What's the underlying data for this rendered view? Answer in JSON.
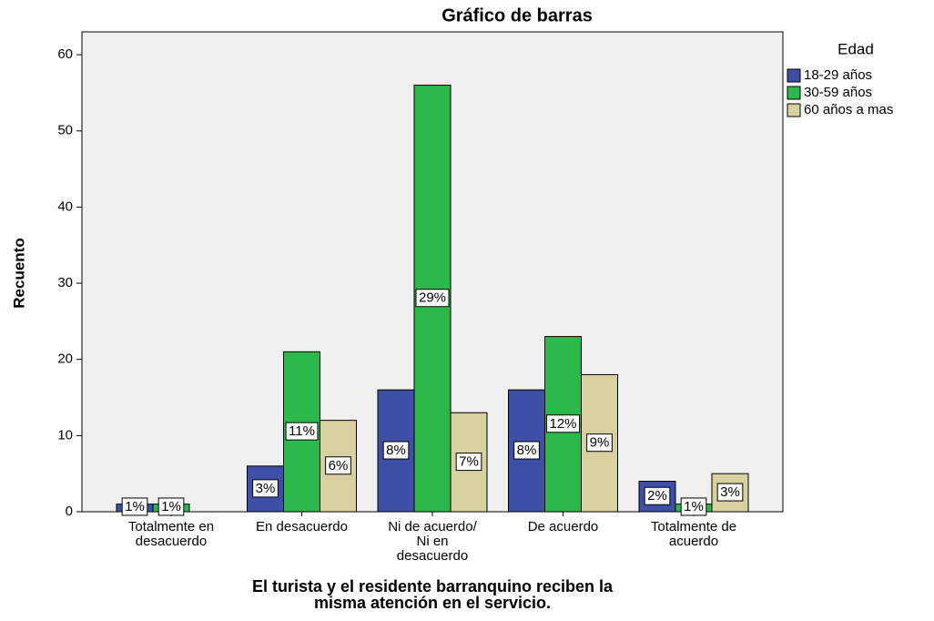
{
  "chart_data": {
    "type": "bar",
    "title": "Gráfico de barras",
    "x_label": "El turista y el residente barranquino reciben la\nmisma atención en el servicio.",
    "y_label": "Recuento",
    "legend_title": "Edad",
    "categories": [
      "Totalmente en\ndesacuerdo",
      "En desacuerdo",
      "Ni de acuerdo/\nNi en\ndesacuerdo",
      "De acuerdo",
      "Totalmente de\nacuerdo"
    ],
    "series": [
      {
        "name": "18-29 años",
        "color": "#3d4fa6",
        "values": [
          1,
          6,
          16,
          16,
          4
        ],
        "value_labels": [
          "1%",
          "3%",
          "8%",
          "8%",
          "2%"
        ]
      },
      {
        "name": "30-59 años",
        "color": "#2db84b",
        "values": [
          1,
          21,
          56,
          23,
          1
        ],
        "value_labels": [
          "1%",
          "11%",
          "29%",
          "12%",
          "1%"
        ]
      },
      {
        "name": "60 años a mas",
        "color": "#d8d0a0",
        "values": [
          0,
          12,
          13,
          18,
          5
        ],
        "value_labels": [
          null,
          "6%",
          "7%",
          "9%",
          "3%"
        ]
      }
    ],
    "ylim": [
      0,
      63
    ],
    "yticks": [
      0,
      10,
      20,
      30,
      40,
      50,
      60
    ],
    "grid": false,
    "legend": "right"
  }
}
